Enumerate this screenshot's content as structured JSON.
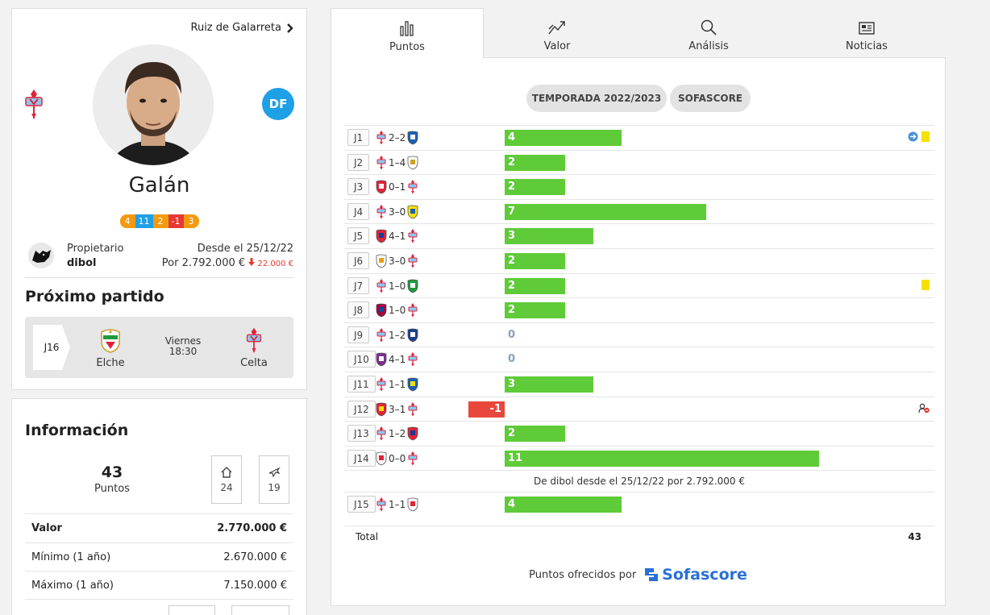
{
  "player": {
    "next_player": "Ruiz de Galarreta",
    "name": "Galán",
    "position": "DF",
    "last_points": [
      {
        "v": "4",
        "color": "#f39a11"
      },
      {
        "v": "11",
        "color": "#1ea0e6"
      },
      {
        "v": "2",
        "color": "#f39a11"
      },
      {
        "v": "-1",
        "color": "#e53935"
      },
      {
        "v": "3",
        "color": "#f39a11"
      }
    ],
    "owner_label": "Propietario",
    "owner_name": "dibol",
    "owner_since": "Desde el 25/12/22",
    "owner_price": "Por 2.792.000 €",
    "owner_drop": "22.000 €"
  },
  "next_match": {
    "title": "Próximo partido",
    "round": "J16",
    "home": "Elche",
    "away": "Celta",
    "day": "Viernes",
    "time": "18:30"
  },
  "info": {
    "title": "Información",
    "points": "43",
    "points_label": "Puntos",
    "home_points": "24",
    "away_points": "19",
    "rows": [
      {
        "label": "Valor",
        "value": "2.770.000 €"
      },
      {
        "label": "Mínimo (1 año)",
        "value": "2.670.000 €"
      },
      {
        "label": "Máximo (1 año)",
        "value": "7.150.000 €"
      }
    ]
  },
  "tabs": [
    {
      "label": "Puntos",
      "icon": "bar-chart-icon"
    },
    {
      "label": "Valor",
      "icon": "trend-icon"
    },
    {
      "label": "Análisis",
      "icon": "search-icon"
    },
    {
      "label": "Noticias",
      "icon": "news-icon"
    }
  ],
  "filters": {
    "season": "TEMPORADA 2022/2023",
    "source": "SOFASCORE"
  },
  "matches": [
    {
      "round": "J1",
      "home": "celta",
      "score": "2–2",
      "away": "espanyol",
      "points": 4,
      "events": [
        "sub",
        "yellow"
      ]
    },
    {
      "round": "J2",
      "home": "celta",
      "score": "1–4",
      "away": "real-madrid",
      "points": 2,
      "events": []
    },
    {
      "round": "J3",
      "home": "girona",
      "score": "0–1",
      "away": "celta",
      "points": 2,
      "events": []
    },
    {
      "round": "J4",
      "home": "celta",
      "score": "3–0",
      "away": "cadiz",
      "points": 7,
      "events": []
    },
    {
      "round": "J5",
      "home": "atletico",
      "score": "4–1",
      "away": "celta",
      "points": 3,
      "events": []
    },
    {
      "round": "J6",
      "home": "valencia",
      "score": "3–0",
      "away": "celta",
      "points": 2,
      "events": []
    },
    {
      "round": "J7",
      "home": "celta",
      "score": "1–0",
      "away": "betis",
      "points": 2,
      "events": [
        "yellow"
      ]
    },
    {
      "round": "J8",
      "home": "barcelona",
      "score": "1–0",
      "away": "celta",
      "points": 2,
      "events": []
    },
    {
      "round": "J9",
      "home": "celta",
      "score": "1–2",
      "away": "real-sociedad",
      "points": 0,
      "events": []
    },
    {
      "round": "J10",
      "home": "valladolid",
      "score": "4–1",
      "away": "celta",
      "points": 0,
      "events": []
    },
    {
      "round": "J11",
      "home": "celta",
      "score": "1–1",
      "away": "getafe",
      "points": 3,
      "events": []
    },
    {
      "round": "J12",
      "home": "almeria",
      "score": "3–1",
      "away": "celta",
      "points": -1,
      "events": [
        "sub-out"
      ]
    },
    {
      "round": "J13",
      "home": "celta",
      "score": "1–2",
      "away": "osasuna",
      "points": 2,
      "events": []
    },
    {
      "round": "J14",
      "home": "rayo",
      "score": "0–0",
      "away": "celta",
      "points": 11,
      "events": []
    },
    {
      "round": "J15",
      "home": "celta",
      "score": "1–1",
      "away": "sevilla",
      "points": 4,
      "events": []
    }
  ],
  "ownership_note": "De dibol desde el 25/12/22 por 2.792.000 €",
  "total_label": "Total",
  "total_value": "43",
  "provided_by": "Puntos ofrecidos por",
  "provider": "Sofascore",
  "colors": {
    "positive": "#5fcb38",
    "negative": "#e8473e",
    "accent": "#1ea0e6"
  }
}
